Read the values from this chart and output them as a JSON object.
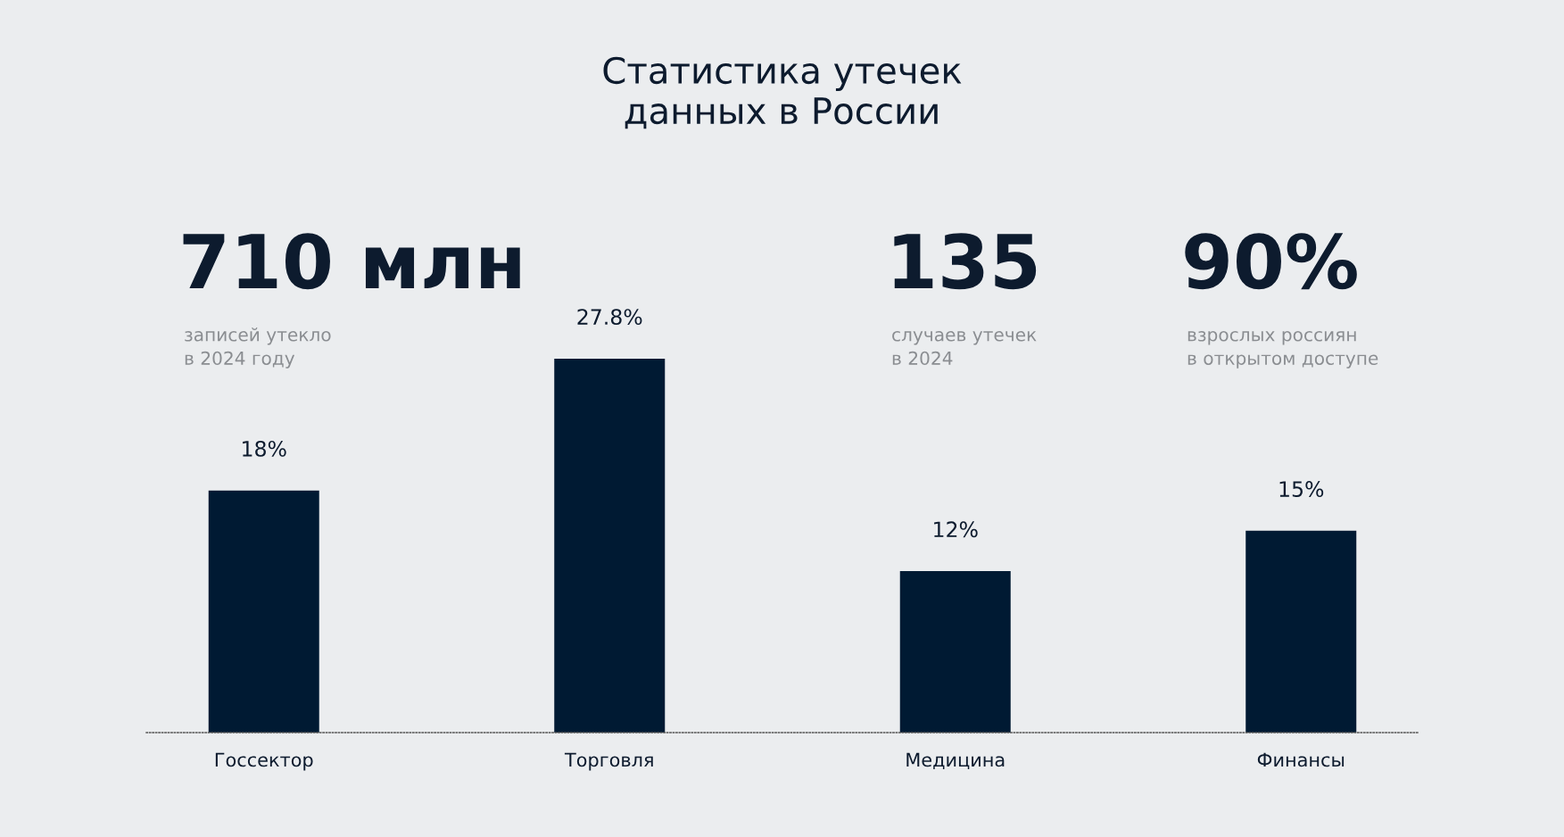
{
  "chart_data": {
    "type": "bar",
    "title": "Статистика утечек\nданных в России",
    "categories": [
      "Госсектор",
      "Торговля",
      "Медицина",
      "Финансы"
    ],
    "values": [
      18,
      27.8,
      12,
      15
    ],
    "value_labels": [
      "18%",
      "27.8%",
      "12%",
      "15%"
    ],
    "color": "#001a33",
    "grid": false,
    "annotations": [
      "710 млн",
      "записей утекло\nв 2024 году",
      "135",
      "случаев утечек\nв 2024",
      "90%",
      "взрослых россиян\nв открытом доступе"
    ]
  }
}
